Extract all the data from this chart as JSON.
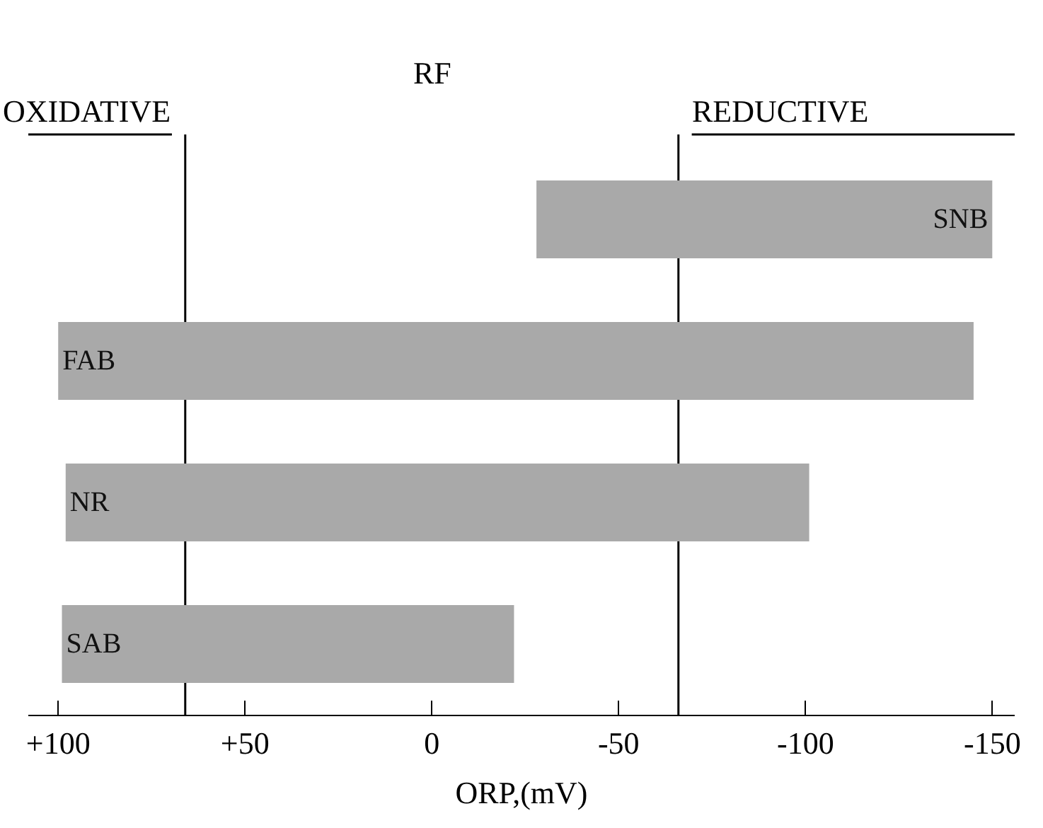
{
  "chart_data": {
    "type": "bar",
    "orientation": "horizontal",
    "xlabel": "ORP,(mV)",
    "categories": [
      "SNB",
      "FAB",
      "NR",
      "SAB"
    ],
    "base": [
      -150,
      100,
      98,
      99
    ],
    "values": [
      122,
      -245,
      -199,
      -121
    ],
    "color": "#a9a9a9",
    "xlim": [
      108,
      -156
    ],
    "xticks": [
      {
        "value": 100,
        "label": "+100"
      },
      {
        "value": 50,
        "label": "+50"
      },
      0,
      -50,
      -100,
      -150
    ],
    "tick_labels": "x",
    "grid": false,
    "legend": false,
    "ref_lines": [
      {
        "axis": "x",
        "value": 66,
        "label": null
      },
      {
        "axis": "x",
        "value": -66,
        "label": null
      }
    ],
    "annotations": [
      "RF",
      "OXIDATIVE",
      "REDUCTIVE"
    ]
  }
}
